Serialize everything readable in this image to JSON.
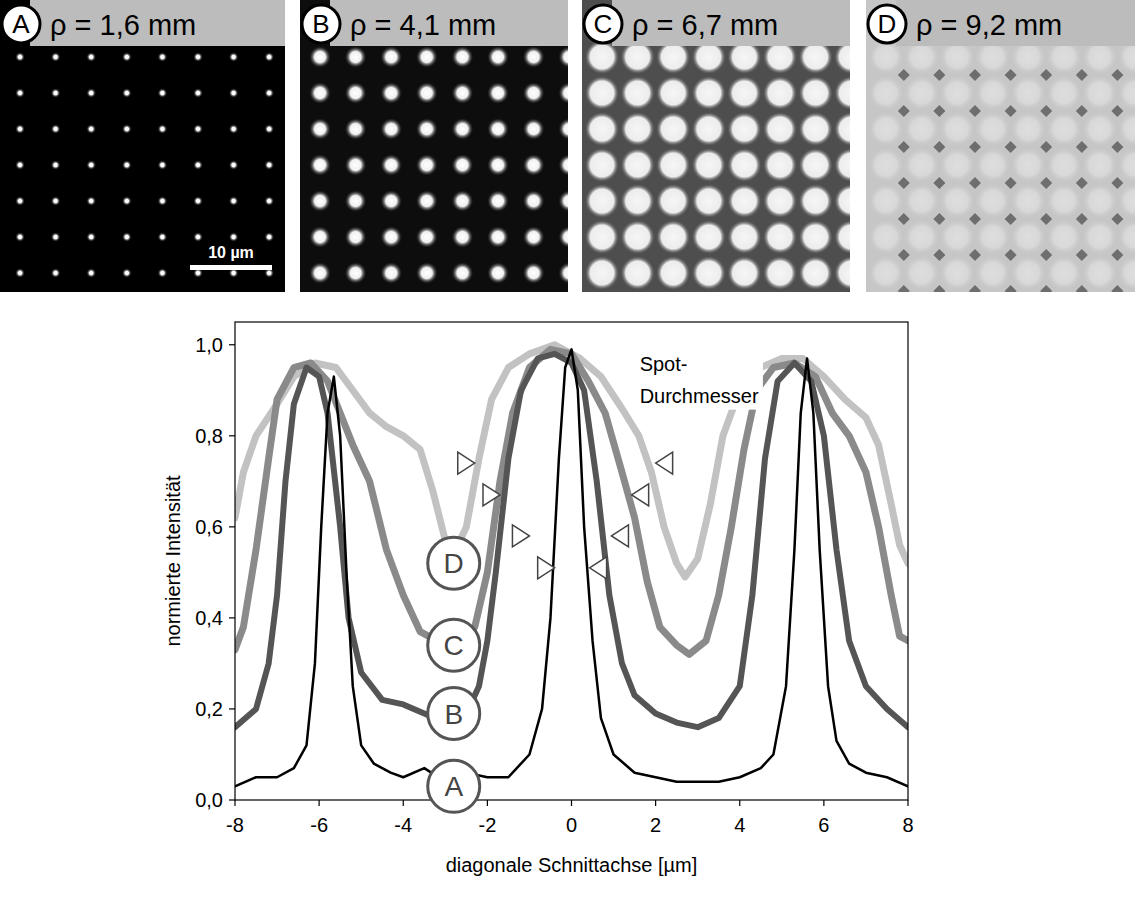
{
  "images": {
    "panels": [
      {
        "label": "A",
        "title": "ρ = 1,6 mm"
      },
      {
        "label": "B",
        "title": "ρ = 4,1 mm"
      },
      {
        "label": "C",
        "title": "ρ = 6,7 mm"
      },
      {
        "label": "D",
        "title": "ρ = 9,2 mm"
      }
    ],
    "scale_bar": "10 µm"
  },
  "chart_data": {
    "type": "line",
    "x_label": "diagonale Schnittachse [µm]",
    "y_label": "normierte Intensität",
    "xlim": [
      -8,
      8
    ],
    "xticks": [
      -8,
      -6,
      -4,
      -2,
      0,
      2,
      4,
      6,
      8
    ],
    "ylim": [
      0,
      1.05
    ],
    "yticks": [
      {
        "value": 0,
        "label": "0,0"
      },
      {
        "value": 0.2,
        "label": "0,2"
      },
      {
        "value": 0.4,
        "label": "0,4"
      },
      {
        "value": 0.6,
        "label": "0,6"
      },
      {
        "value": 0.8,
        "label": "0,8"
      },
      {
        "value": 1.0,
        "label": "1,0"
      }
    ],
    "series": [
      {
        "name": "A",
        "color": "#000000",
        "x": [
          -8,
          -7.5,
          -7,
          -6.6,
          -6.3,
          -6.1,
          -5.95,
          -5.8,
          -5.65,
          -5.5,
          -5.35,
          -5.2,
          -5,
          -4.7,
          -4.3,
          -4,
          -3.5,
          -3,
          -2.5,
          -2,
          -1.5,
          -1,
          -0.7,
          -0.5,
          -0.3,
          -0.15,
          0,
          0.15,
          0.3,
          0.5,
          0.7,
          1,
          1.5,
          2,
          2.5,
          3,
          3.5,
          4,
          4.5,
          4.8,
          5.1,
          5.3,
          5.45,
          5.6,
          5.75,
          5.9,
          6.1,
          6.3,
          6.6,
          7,
          7.5,
          8
        ],
        "values": [
          0.03,
          0.05,
          0.05,
          0.07,
          0.12,
          0.3,
          0.6,
          0.85,
          0.93,
          0.8,
          0.5,
          0.25,
          0.12,
          0.08,
          0.06,
          0.05,
          0.07,
          0.04,
          0.06,
          0.05,
          0.05,
          0.1,
          0.2,
          0.4,
          0.75,
          0.95,
          0.99,
          0.9,
          0.6,
          0.35,
          0.18,
          0.1,
          0.06,
          0.05,
          0.04,
          0.04,
          0.04,
          0.05,
          0.07,
          0.1,
          0.25,
          0.55,
          0.85,
          0.97,
          0.85,
          0.55,
          0.25,
          0.13,
          0.08,
          0.06,
          0.05,
          0.03
        ],
        "label_x": -2.8,
        "label_y": 0.03,
        "spot_diameter": {
          "y": 0.51,
          "x": [
            -0.4,
            0.43
          ]
        }
      },
      {
        "name": "B",
        "color": "#555555",
        "x": [
          -8,
          -7.5,
          -7.2,
          -7,
          -6.8,
          -6.6,
          -6.3,
          -6,
          -5.8,
          -5.5,
          -5.3,
          -5,
          -4.5,
          -4,
          -3.5,
          -3,
          -2.5,
          -2.2,
          -2,
          -1.8,
          -1.5,
          -1.2,
          -0.8,
          -0.4,
          0,
          0.3,
          0.6,
          0.9,
          1.2,
          1.5,
          2,
          2.5,
          3,
          3.5,
          4,
          4.3,
          4.6,
          4.9,
          5.3,
          5.7,
          6,
          6.3,
          6.6,
          7,
          7.5,
          8
        ],
        "values": [
          0.16,
          0.2,
          0.3,
          0.45,
          0.7,
          0.87,
          0.95,
          0.93,
          0.85,
          0.6,
          0.4,
          0.28,
          0.22,
          0.21,
          0.19,
          0.17,
          0.19,
          0.25,
          0.35,
          0.5,
          0.75,
          0.9,
          0.97,
          0.98,
          0.96,
          0.9,
          0.7,
          0.45,
          0.3,
          0.23,
          0.19,
          0.17,
          0.16,
          0.18,
          0.25,
          0.45,
          0.75,
          0.92,
          0.96,
          0.92,
          0.8,
          0.55,
          0.35,
          0.25,
          0.2,
          0.16
        ],
        "label_x": -2.8,
        "label_y": 0.19,
        "spot_diameter": {
          "y": 0.58,
          "x": [
            -1.0,
            0.95
          ]
        }
      },
      {
        "name": "C",
        "color": "#8a8a8a",
        "x": [
          -8,
          -7.8,
          -7.5,
          -7.2,
          -7,
          -6.6,
          -6.2,
          -5.8,
          -5.5,
          -5.2,
          -4.8,
          -4.4,
          -4,
          -3.6,
          -3.2,
          -2.7,
          -2.3,
          -2,
          -1.7,
          -1.4,
          -1,
          -0.5,
          0,
          0.4,
          0.8,
          1.2,
          1.5,
          1.8,
          2.1,
          2.5,
          2.8,
          3.2,
          3.5,
          3.8,
          4.1,
          4.4,
          4.8,
          5.3,
          5.8,
          6.2,
          6.6,
          7,
          7.3,
          7.6,
          7.8,
          8
        ],
        "values": [
          0.33,
          0.38,
          0.55,
          0.75,
          0.88,
          0.95,
          0.96,
          0.92,
          0.85,
          0.78,
          0.7,
          0.55,
          0.45,
          0.37,
          0.35,
          0.34,
          0.38,
          0.5,
          0.7,
          0.85,
          0.95,
          0.99,
          0.98,
          0.92,
          0.85,
          0.72,
          0.62,
          0.48,
          0.38,
          0.34,
          0.32,
          0.35,
          0.45,
          0.6,
          0.77,
          0.9,
          0.95,
          0.96,
          0.93,
          0.85,
          0.8,
          0.72,
          0.6,
          0.45,
          0.36,
          0.35
        ],
        "label_x": -2.8,
        "label_y": 0.34,
        "spot_diameter": {
          "y": 0.67,
          "x": [
            -1.7,
            1.43
          ]
        }
      },
      {
        "name": "D",
        "color": "#c2c2c2",
        "x": [
          -8,
          -7.8,
          -7.5,
          -7,
          -6.6,
          -6.1,
          -5.6,
          -5.2,
          -4.8,
          -4.4,
          -4,
          -3.6,
          -3.3,
          -3,
          -2.8,
          -2.5,
          -2.2,
          -1.9,
          -1.5,
          -1,
          -0.4,
          0.2,
          0.7,
          1.2,
          1.6,
          1.9,
          2.2,
          2.5,
          2.7,
          3,
          3.3,
          3.6,
          4,
          4.5,
          5,
          5.5,
          6,
          6.5,
          7,
          7.3,
          7.6,
          7.8,
          8
        ],
        "values": [
          0.62,
          0.72,
          0.8,
          0.87,
          0.93,
          0.96,
          0.95,
          0.9,
          0.85,
          0.82,
          0.8,
          0.77,
          0.68,
          0.57,
          0.54,
          0.6,
          0.75,
          0.88,
          0.95,
          0.98,
          1.0,
          0.97,
          0.93,
          0.86,
          0.8,
          0.72,
          0.6,
          0.52,
          0.49,
          0.53,
          0.65,
          0.8,
          0.9,
          0.95,
          0.97,
          0.97,
          0.93,
          0.88,
          0.84,
          0.78,
          0.65,
          0.56,
          0.52
        ],
        "label_x": -2.8,
        "label_y": 0.52,
        "spot_diameter": {
          "y": 0.74,
          "x": [
            -2.3,
            2.0
          ]
        }
      }
    ],
    "annotations": [
      {
        "text": [
          "Spot-",
          "Durchmesser"
        ],
        "x": 1.62,
        "y": 0.93
      }
    ]
  }
}
